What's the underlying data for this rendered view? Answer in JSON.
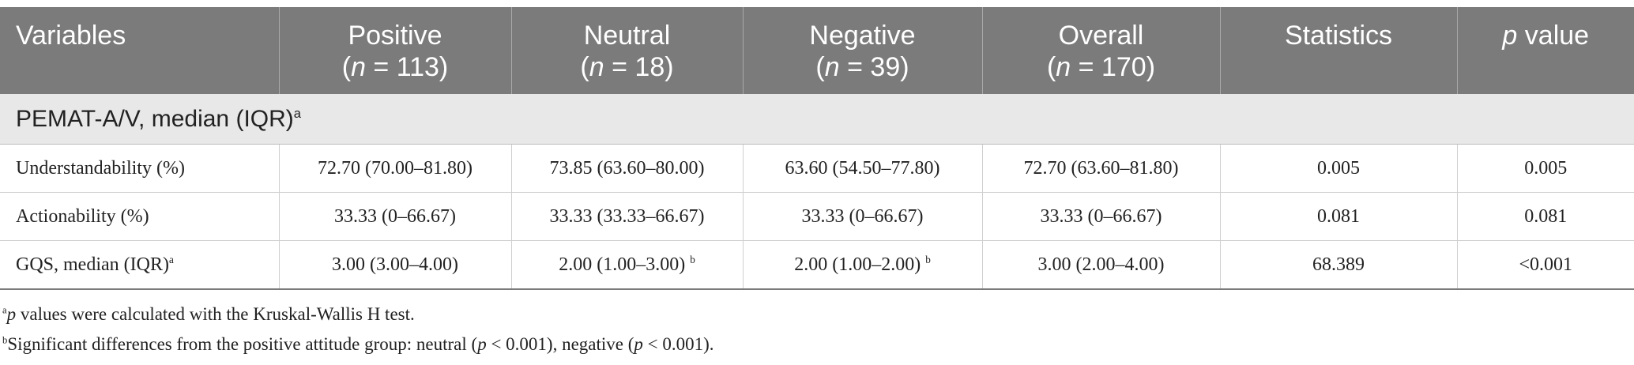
{
  "header": {
    "variables": "Variables",
    "positive": {
      "title": "Positive",
      "n_prefix": "(",
      "n_label": "n",
      "n_value": " = 113)"
    },
    "neutral": {
      "title": "Neutral",
      "n_prefix": "(",
      "n_label": "n",
      "n_value": " = 18)"
    },
    "negative": {
      "title": "Negative",
      "n_prefix": "(",
      "n_label": "n",
      "n_value": " = 39)"
    },
    "overall": {
      "title": "Overall",
      "n_prefix": "(",
      "n_label": "n",
      "n_value": " = 170)"
    },
    "statistics": "Statistics",
    "pvalue_p": "p",
    "pvalue_rest": " value"
  },
  "section": {
    "label": "PEMAT-A/V, median (IQR)",
    "sup": "a"
  },
  "rows": [
    {
      "label": "Understandability (%)",
      "label_sup": "",
      "positive": "72.70 (70.00–81.80)",
      "neutral": "73.85 (63.60–80.00)",
      "neutral_sup": "",
      "negative": "63.60 (54.50–77.80)",
      "negative_sup": "",
      "overall": "72.70 (63.60–81.80)",
      "statistics": "0.005",
      "pvalue": "0.005"
    },
    {
      "label": "Actionability (%)",
      "label_sup": "",
      "positive": "33.33 (0–66.67)",
      "neutral": "33.33 (33.33–66.67)",
      "neutral_sup": "",
      "negative": "33.33 (0–66.67)",
      "negative_sup": "",
      "overall": "33.33 (0–66.67)",
      "statistics": "0.081",
      "pvalue": "0.081"
    },
    {
      "label": "GQS, median (IQR)",
      "label_sup": "a",
      "positive": "3.00 (3.00–4.00)",
      "neutral": "2.00 (1.00–3.00) ",
      "neutral_sup": "b",
      "negative": "2.00 (1.00–2.00) ",
      "negative_sup": "b",
      "overall": "3.00 (2.00–4.00)",
      "statistics": "68.389",
      "pvalue": "<0.001"
    }
  ],
  "footnotes": {
    "a": {
      "sup": "a",
      "italic": "p",
      "text": " values were calculated with the Kruskal-Wallis H test."
    },
    "b": {
      "sup": "b",
      "text1": "Significant differences from the positive attitude group: neutral (",
      "italic1": "p",
      "text2": " < 0.001), negative (",
      "italic2": "p",
      "text3": " < 0.001)."
    }
  }
}
